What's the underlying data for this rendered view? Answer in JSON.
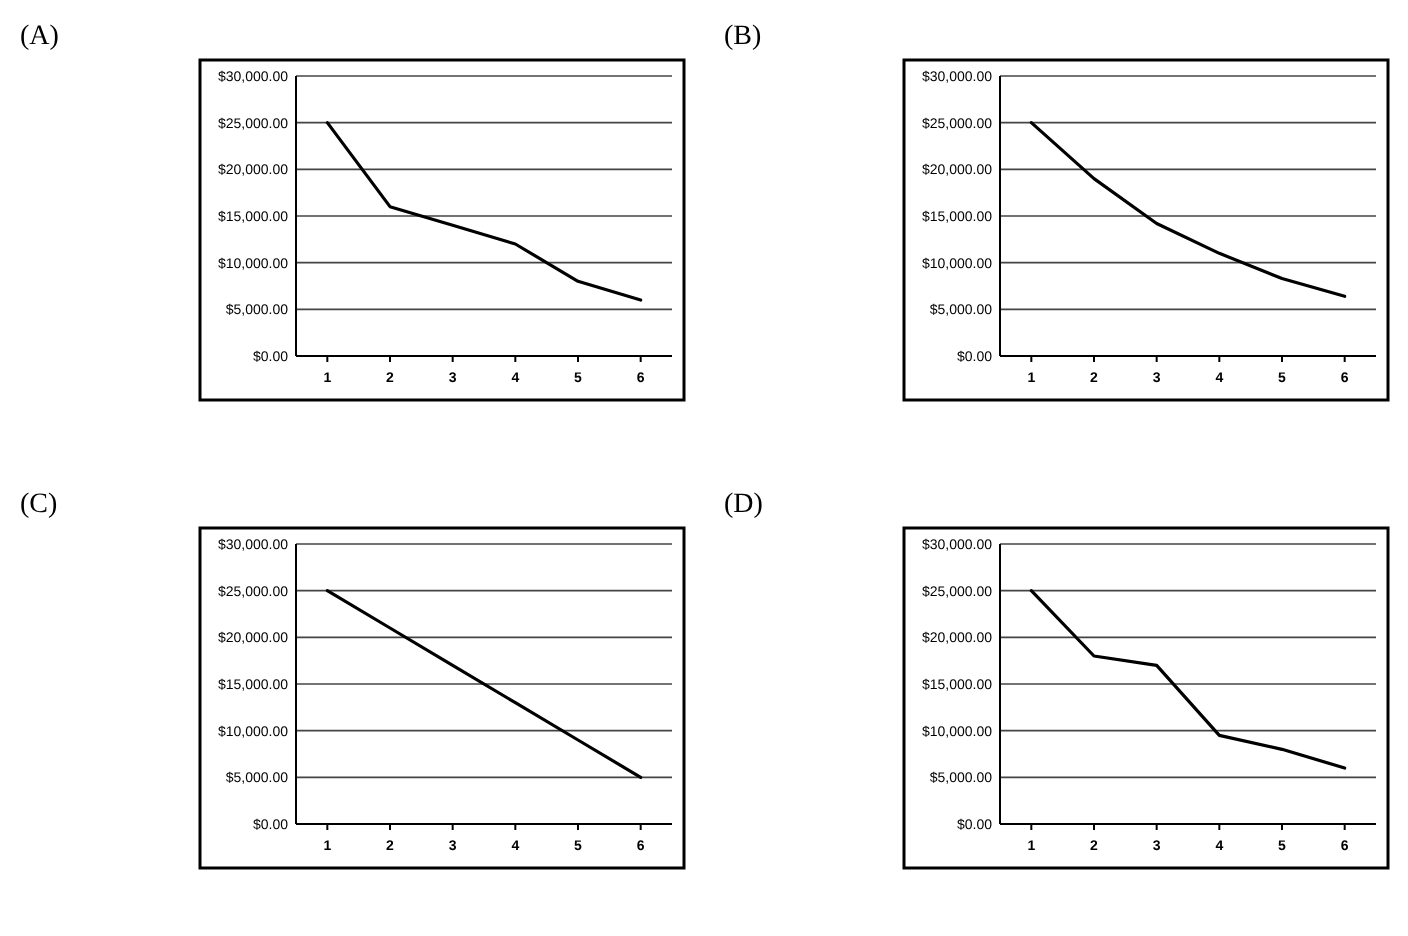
{
  "chart_data": [
    {
      "type": "line",
      "title": "(A)",
      "categories": [
        "1",
        "2",
        "3",
        "4",
        "5",
        "6"
      ],
      "series": [
        {
          "color": "#000000",
          "values": [
            25000,
            16000,
            14000,
            12000,
            8000,
            6000
          ]
        }
      ],
      "ylim": [
        0,
        30000
      ],
      "yticks": [
        {
          "value": 0,
          "label": "$0.00"
        },
        {
          "value": 5000,
          "label": "$5,000.00"
        },
        {
          "value": 10000,
          "label": "$10,000.00"
        },
        {
          "value": 15000,
          "label": "$15,000.00"
        },
        {
          "value": 20000,
          "label": "$20,000.00"
        },
        {
          "value": 25000,
          "label": "$25,000.00"
        },
        {
          "value": 30000,
          "label": "$30,000.00"
        }
      ],
      "grid": "y",
      "marker": "none",
      "line_style": "solid"
    },
    {
      "type": "line",
      "title": "(B)",
      "categories": [
        "1",
        "2",
        "3",
        "4",
        "5",
        "6"
      ],
      "series": [
        {
          "color": "#000000",
          "values": [
            25000,
            19000,
            14200,
            11000,
            8300,
            6400
          ]
        }
      ],
      "ylim": [
        0,
        30000
      ],
      "yticks": [
        {
          "value": 0,
          "label": "$0.00"
        },
        {
          "value": 5000,
          "label": "$5,000.00"
        },
        {
          "value": 10000,
          "label": "$10,000.00"
        },
        {
          "value": 15000,
          "label": "$15,000.00"
        },
        {
          "value": 20000,
          "label": "$20,000.00"
        },
        {
          "value": 25000,
          "label": "$25,000.00"
        },
        {
          "value": 30000,
          "label": "$30,000.00"
        }
      ],
      "grid": "y",
      "marker": "none",
      "line_style": "solid"
    },
    {
      "type": "line",
      "title": "(C)",
      "categories": [
        "1",
        "2",
        "3",
        "4",
        "5",
        "6"
      ],
      "series": [
        {
          "color": "#000000",
          "values": [
            25000,
            21000,
            17000,
            13000,
            9000,
            5000
          ]
        }
      ],
      "ylim": [
        0,
        30000
      ],
      "yticks": [
        {
          "value": 0,
          "label": "$0.00"
        },
        {
          "value": 5000,
          "label": "$5,000.00"
        },
        {
          "value": 10000,
          "label": "$10,000.00"
        },
        {
          "value": 15000,
          "label": "$15,000.00"
        },
        {
          "value": 20000,
          "label": "$20,000.00"
        },
        {
          "value": 25000,
          "label": "$25,000.00"
        },
        {
          "value": 30000,
          "label": "$30,000.00"
        }
      ],
      "grid": "y",
      "marker": "none",
      "line_style": "solid"
    },
    {
      "type": "line",
      "title": "(D)",
      "categories": [
        "1",
        "2",
        "3",
        "4",
        "5",
        "6"
      ],
      "series": [
        {
          "color": "#000000",
          "values": [
            25000,
            18000,
            17000,
            9500,
            8000,
            6000
          ]
        }
      ],
      "ylim": [
        0,
        30000
      ],
      "yticks": [
        {
          "value": 0,
          "label": "$0.00"
        },
        {
          "value": 5000,
          "label": "$5,000.00"
        },
        {
          "value": 10000,
          "label": "$10,000.00"
        },
        {
          "value": 15000,
          "label": "$15,000.00"
        },
        {
          "value": 20000,
          "label": "$20,000.00"
        },
        {
          "value": 25000,
          "label": "$25,000.00"
        },
        {
          "value": 30000,
          "label": "$30,000.00"
        }
      ],
      "grid": "y",
      "marker": "none",
      "line_style": "solid"
    }
  ]
}
